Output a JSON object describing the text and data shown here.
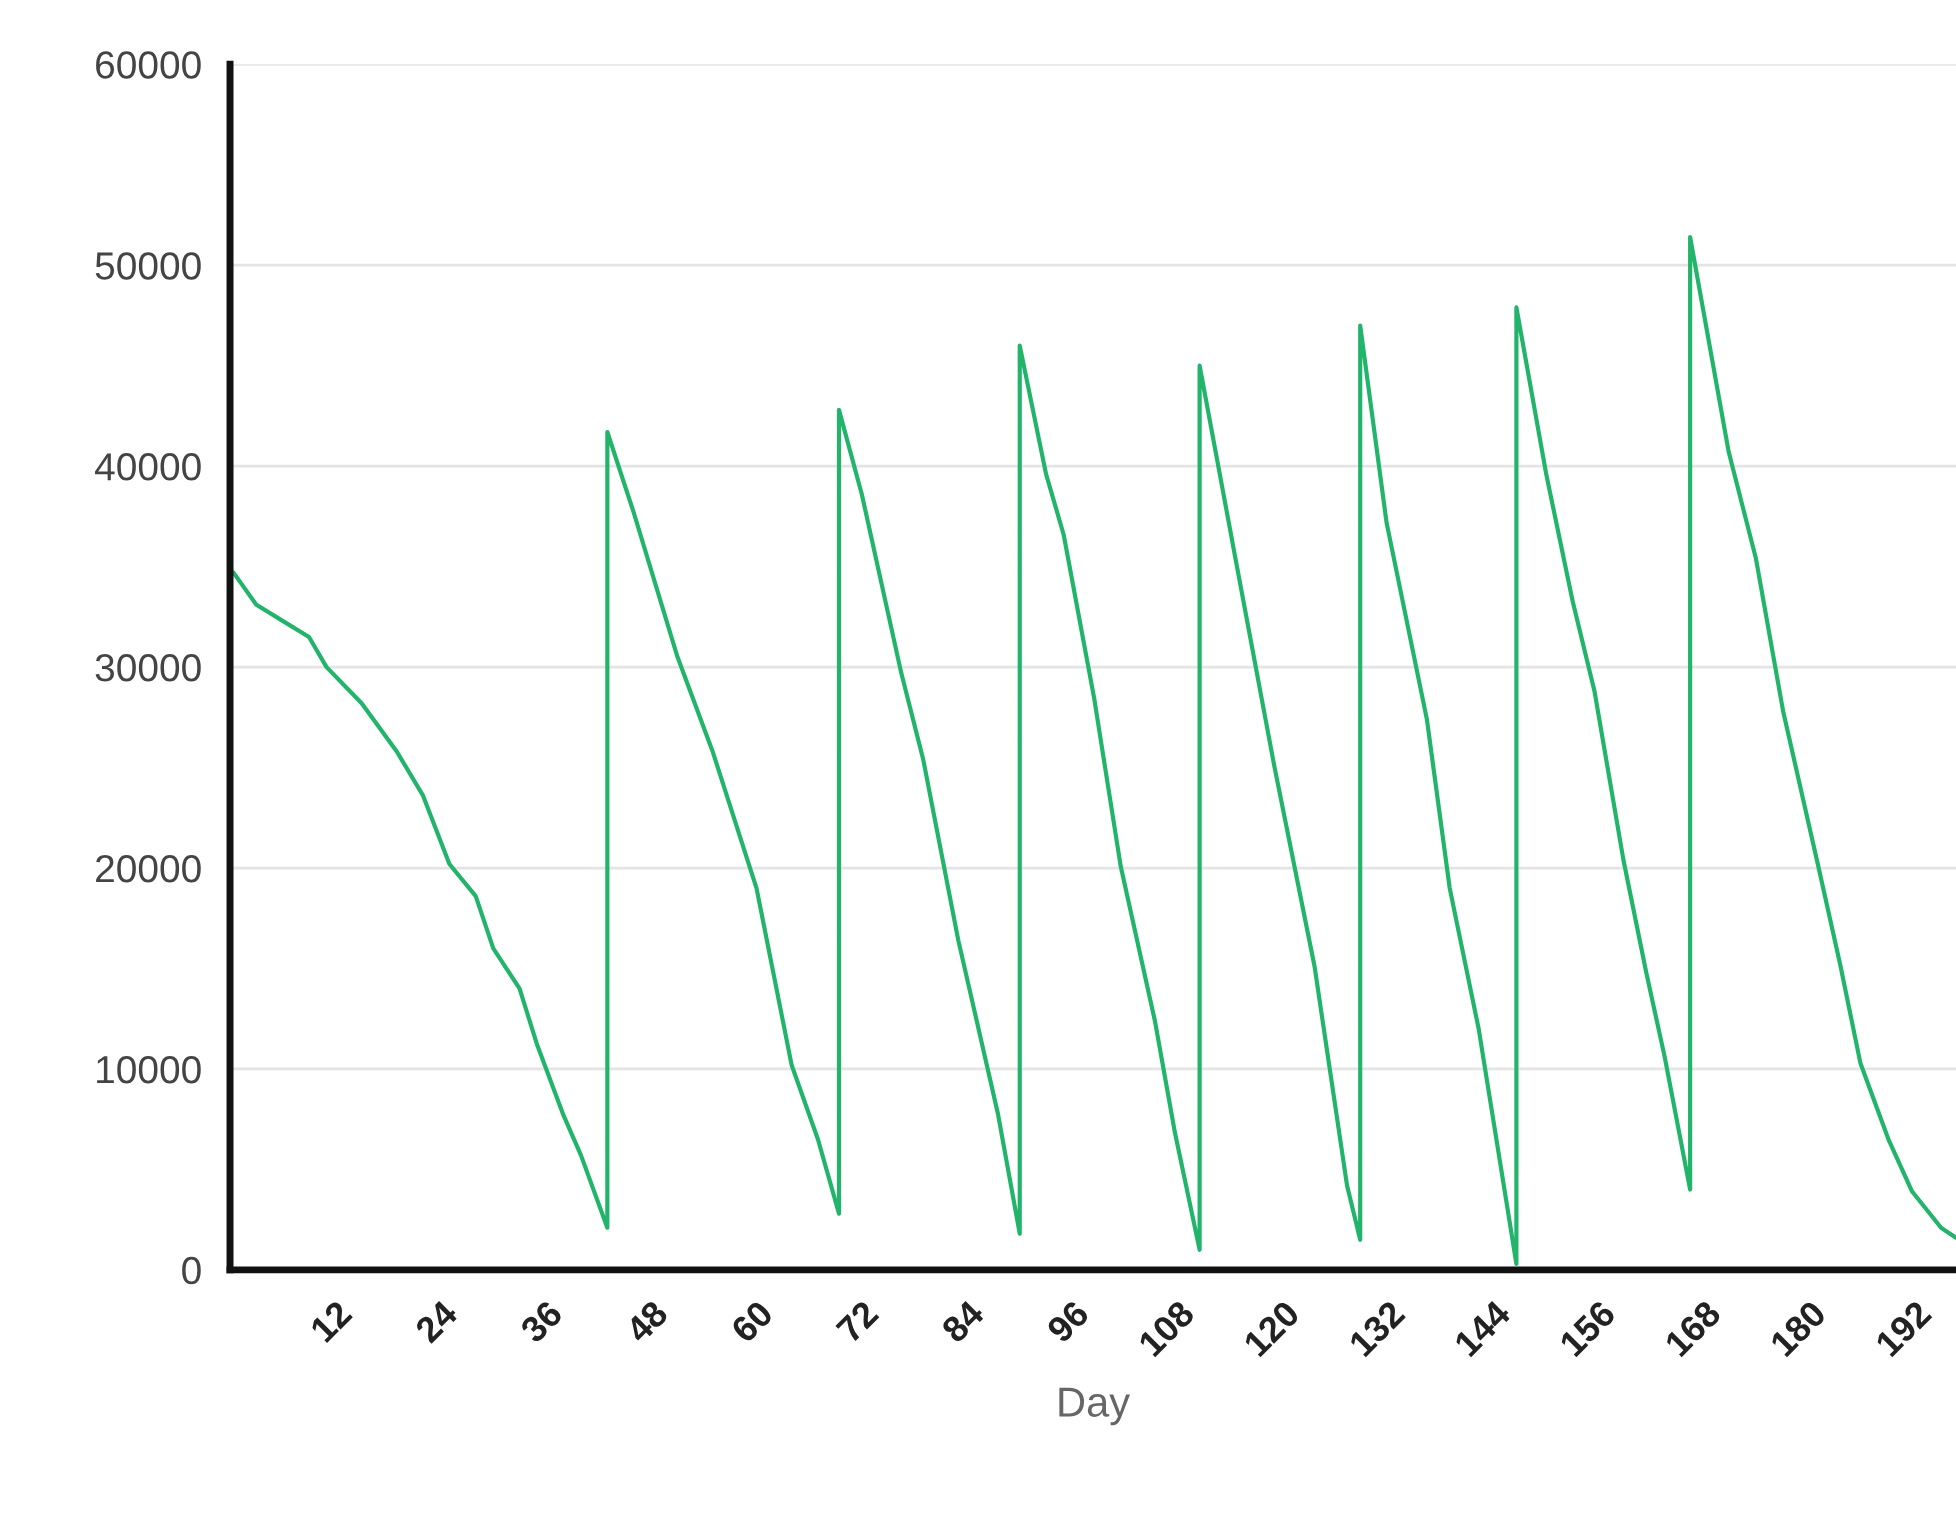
{
  "chart_data": {
    "type": "line",
    "xlabel": "Day",
    "x": [
      0.4,
      3,
      6,
      9,
      11,
      15,
      19,
      22,
      25,
      28,
      30,
      33,
      35,
      38,
      40,
      43,
      43,
      46,
      51,
      55,
      60,
      64,
      67,
      69.4,
      69.4,
      72,
      76.5,
      79,
      83,
      87.5,
      90,
      90,
      93,
      95,
      98.5,
      101.5,
      105.4,
      107.7,
      110.5,
      110.5,
      114.5,
      119,
      123.6,
      127.3,
      128.8,
      128.8,
      131.8,
      136.4,
      139,
      142.3,
      146.6,
      146.6,
      150,
      153,
      155.5,
      158.8,
      161.4,
      163.5,
      166.4,
      166.4,
      170.8,
      173.9,
      177,
      181,
      183.5,
      185.8,
      189,
      191.7,
      195,
      196.7
    ],
    "series": [
      {
        "color": "#22b46b",
        "values": [
          34700,
          33100,
          32300,
          31500,
          30000,
          28200,
          25800,
          23600,
          20200,
          18600,
          16000,
          14000,
          11200,
          7700,
          5700,
          2100,
          41700,
          37700,
          30500,
          25800,
          19000,
          10200,
          6500,
          2800,
          42800,
          38600,
          29700,
          25400,
          16400,
          7800,
          1800,
          46000,
          39600,
          36600,
          28400,
          20100,
          12400,
          6800,
          1000,
          45000,
          35600,
          25100,
          15100,
          4200,
          1500,
          47000,
          37200,
          27400,
          19000,
          12000,
          300,
          47900,
          39600,
          33300,
          28800,
          20400,
          14800,
          10600,
          4000,
          51400,
          40700,
          35400,
          27800,
          20100,
          15200,
          10300,
          6500,
          3900,
          2100,
          1600
        ]
      }
    ],
    "xlim": [
      0,
      196.7
    ],
    "xticks": [
      12,
      24,
      36,
      48,
      60,
      72,
      84,
      96,
      108,
      120,
      132,
      144,
      156,
      168,
      180,
      192
    ],
    "ylim": [
      0,
      60000
    ],
    "yticks": [
      0,
      10000,
      20000,
      30000,
      40000,
      50000,
      60000
    ],
    "grid": "y",
    "marker": "none",
    "line_style": "solid"
  }
}
